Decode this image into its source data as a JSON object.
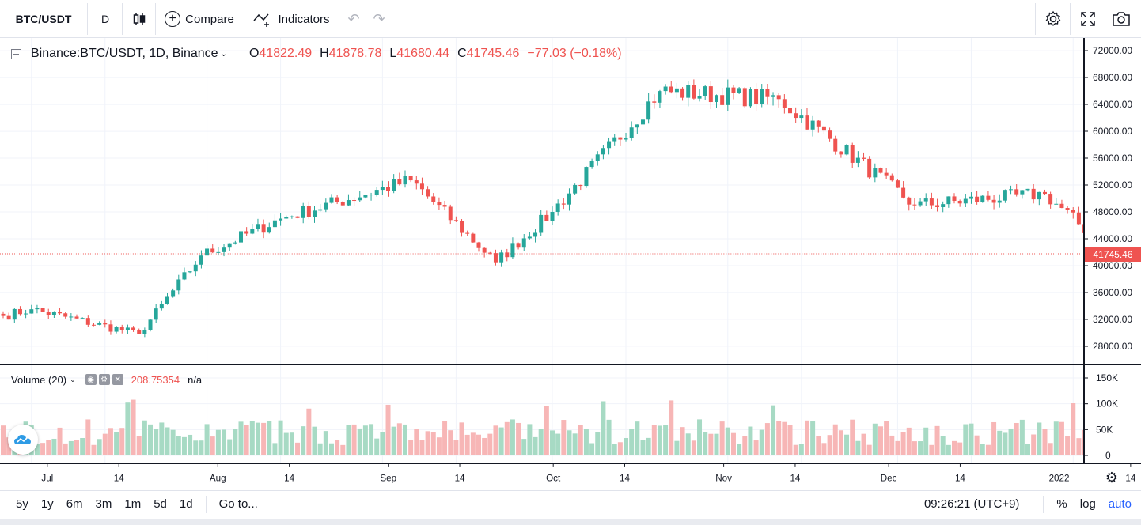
{
  "toolbar": {
    "symbol": "BTC/USDT",
    "interval": "D",
    "compare_label": "Compare",
    "indicators_label": "Indicators"
  },
  "legend": {
    "title": "Binance:BTC/USDT, 1D, Binance",
    "open_key": "O",
    "open": "41822.49",
    "high_key": "H",
    "high": "41878.78",
    "low_key": "L",
    "low": "41680.44",
    "close_key": "C",
    "close": "41745.46",
    "change": "−77.03 (−0.18%)"
  },
  "volume_legend": {
    "title": "Volume (20)",
    "value": "208.75354",
    "ma_value": "n/a"
  },
  "price_axis": {
    "ticks": [
      "72000.00",
      "68000.00",
      "64000.00",
      "60000.00",
      "56000.00",
      "52000.00",
      "48000.00",
      "44000.00",
      "40000.00",
      "36000.00",
      "32000.00",
      "28000.00"
    ],
    "last_price": "41745.46"
  },
  "volume_axis": {
    "ticks": [
      "150K",
      "100K",
      "50K",
      "0"
    ]
  },
  "time_axis": {
    "ticks": [
      "Jul",
      "14",
      "Aug",
      "14",
      "Sep",
      "14",
      "Oct",
      "14",
      "Nov",
      "14",
      "Dec",
      "14",
      "2022",
      "14"
    ]
  },
  "bottom_bar": {
    "ranges": [
      "5y",
      "1y",
      "6m",
      "3m",
      "1m",
      "5d",
      "1d"
    ],
    "goto": "Go to...",
    "clock": "09:26:21 (UTC+9)",
    "percent": "%",
    "log": "log",
    "auto": "auto"
  },
  "colors": {
    "up": "#26a69a",
    "down": "#ef5350",
    "vol_up": "#a7dac4",
    "vol_down": "#f7b6b6",
    "grid": "#f0f3fa",
    "accent": "#2962ff"
  },
  "chart_data": {
    "type": "candlestick",
    "symbol": "BTC/USDT",
    "interval": "1D",
    "ylim": [
      26000,
      73000
    ],
    "volume_ylim": [
      0,
      170000
    ],
    "series": [
      {
        "date": "2021-06-26",
        "close": 32500
      },
      {
        "date": "2021-07-01",
        "close": 33500
      },
      {
        "date": "2021-07-20",
        "close": 29800
      },
      {
        "date": "2021-07-31",
        "close": 41500
      },
      {
        "date": "2021-08-14",
        "close": 47000
      },
      {
        "date": "2021-09-06",
        "close": 52700
      },
      {
        "date": "2021-09-21",
        "close": 40500
      },
      {
        "date": "2021-10-01",
        "close": 48000
      },
      {
        "date": "2021-10-20",
        "close": 66000
      },
      {
        "date": "2021-11-10",
        "close": 64800
      },
      {
        "date": "2021-12-04",
        "close": 49000
      },
      {
        "date": "2021-12-27",
        "close": 50700
      },
      {
        "date": "2022-01-08",
        "close": 41745.46
      }
    ]
  }
}
